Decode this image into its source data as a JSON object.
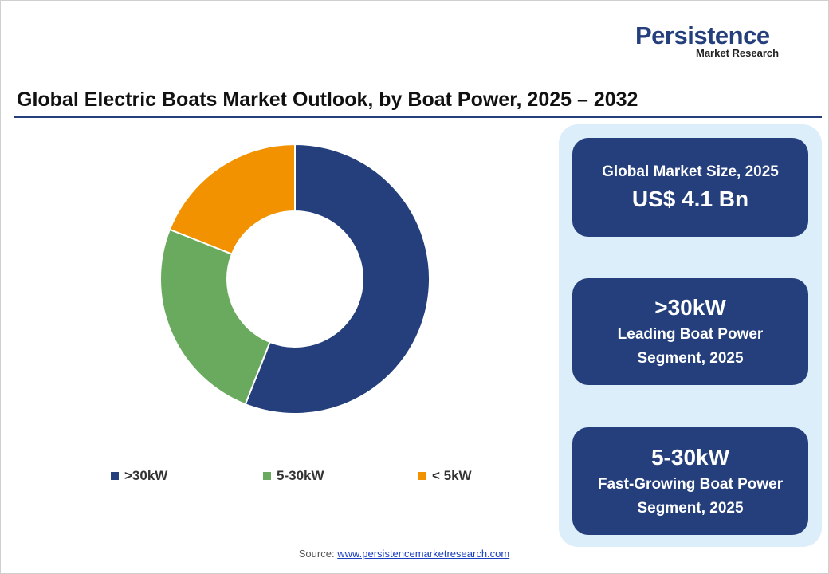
{
  "logo": {
    "name": "Persistence",
    "tagline": "Market Research"
  },
  "chart_data": {
    "type": "donut",
    "title": "Global Electric Boats Market Outlook, by Boat Power, 2025 – 2032",
    "categories": [
      ">30kW",
      "5-30kW",
      "< 5kW"
    ],
    "values": [
      56,
      25,
      19
    ],
    "colors": [
      "#243f7c",
      "#6aaa5e",
      "#f39200"
    ]
  },
  "panels": [
    {
      "heading": "Global Market Size, 2025",
      "lines": [
        "US$ 4.1 Bn"
      ]
    },
    {
      "heading": ">30kW",
      "lines": [
        "Leading Boat Power",
        "Segment, 2025"
      ]
    },
    {
      "heading": "5-30kW",
      "lines": [
        "Fast-Growing Boat Power",
        "Segment, 2025"
      ]
    }
  ],
  "source": {
    "label": "Source:",
    "url": "www.persistencemarketresearch.com"
  }
}
